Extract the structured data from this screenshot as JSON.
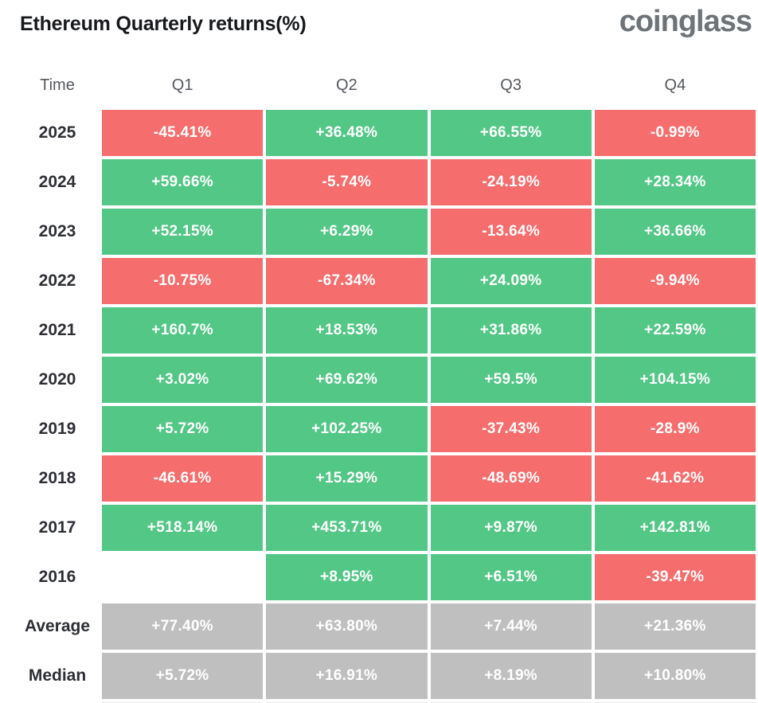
{
  "header": {
    "title": "Ethereum Quarterly returns(%)",
    "logo": "coinglass"
  },
  "colors": {
    "positive": "#52c786",
    "negative": "#f56d6d",
    "summary": "#bfbfbf",
    "cell_text": "#ffffff",
    "title_text": "#17191c",
    "logo_text": "#6e7378"
  },
  "table": {
    "columns": [
      "Time",
      "Q1",
      "Q2",
      "Q3",
      "Q4"
    ],
    "rows": [
      {
        "label": "2025",
        "cells": [
          {
            "text": "-45.41%",
            "type": "negative"
          },
          {
            "text": "+36.48%",
            "type": "positive"
          },
          {
            "text": "+66.55%",
            "type": "positive"
          },
          {
            "text": "-0.99%",
            "type": "negative"
          }
        ]
      },
      {
        "label": "2024",
        "cells": [
          {
            "text": "+59.66%",
            "type": "positive"
          },
          {
            "text": "-5.74%",
            "type": "negative"
          },
          {
            "text": "-24.19%",
            "type": "negative"
          },
          {
            "text": "+28.34%",
            "type": "positive"
          }
        ]
      },
      {
        "label": "2023",
        "cells": [
          {
            "text": "+52.15%",
            "type": "positive"
          },
          {
            "text": "+6.29%",
            "type": "positive"
          },
          {
            "text": "-13.64%",
            "type": "negative"
          },
          {
            "text": "+36.66%",
            "type": "positive"
          }
        ]
      },
      {
        "label": "2022",
        "cells": [
          {
            "text": "-10.75%",
            "type": "negative"
          },
          {
            "text": "-67.34%",
            "type": "negative"
          },
          {
            "text": "+24.09%",
            "type": "positive"
          },
          {
            "text": "-9.94%",
            "type": "negative"
          }
        ]
      },
      {
        "label": "2021",
        "cells": [
          {
            "text": "+160.7%",
            "type": "positive"
          },
          {
            "text": "+18.53%",
            "type": "positive"
          },
          {
            "text": "+31.86%",
            "type": "positive"
          },
          {
            "text": "+22.59%",
            "type": "positive"
          }
        ]
      },
      {
        "label": "2020",
        "cells": [
          {
            "text": "+3.02%",
            "type": "positive"
          },
          {
            "text": "+69.62%",
            "type": "positive"
          },
          {
            "text": "+59.5%",
            "type": "positive"
          },
          {
            "text": "+104.15%",
            "type": "positive"
          }
        ]
      },
      {
        "label": "2019",
        "cells": [
          {
            "text": "+5.72%",
            "type": "positive"
          },
          {
            "text": "+102.25%",
            "type": "positive"
          },
          {
            "text": "-37.43%",
            "type": "negative"
          },
          {
            "text": "-28.9%",
            "type": "negative"
          }
        ]
      },
      {
        "label": "2018",
        "cells": [
          {
            "text": "-46.61%",
            "type": "negative"
          },
          {
            "text": "+15.29%",
            "type": "positive"
          },
          {
            "text": "-48.69%",
            "type": "negative"
          },
          {
            "text": "-41.62%",
            "type": "negative"
          }
        ]
      },
      {
        "label": "2017",
        "cells": [
          {
            "text": "+518.14%",
            "type": "positive"
          },
          {
            "text": "+453.71%",
            "type": "positive"
          },
          {
            "text": "+9.87%",
            "type": "positive"
          },
          {
            "text": "+142.81%",
            "type": "positive"
          }
        ]
      },
      {
        "label": "2016",
        "cells": [
          {
            "text": "",
            "type": "empty"
          },
          {
            "text": "+8.95%",
            "type": "positive"
          },
          {
            "text": "+6.51%",
            "type": "positive"
          },
          {
            "text": "-39.47%",
            "type": "negative"
          }
        ]
      },
      {
        "label": "Average",
        "cells": [
          {
            "text": "+77.40%",
            "type": "summary"
          },
          {
            "text": "+63.80%",
            "type": "summary"
          },
          {
            "text": "+7.44%",
            "type": "summary"
          },
          {
            "text": "+21.36%",
            "type": "summary"
          }
        ]
      },
      {
        "label": "Median",
        "cells": [
          {
            "text": "+5.72%",
            "type": "summary"
          },
          {
            "text": "+16.91%",
            "type": "summary"
          },
          {
            "text": "+8.19%",
            "type": "summary"
          },
          {
            "text": "+10.80%",
            "type": "summary"
          }
        ]
      }
    ]
  },
  "chart_data": {
    "type": "heatmap",
    "title": "Ethereum Quarterly returns(%)",
    "unit": "%",
    "columns": [
      "Q1",
      "Q2",
      "Q3",
      "Q4"
    ],
    "row_labels": [
      "2025",
      "2024",
      "2023",
      "2022",
      "2021",
      "2020",
      "2019",
      "2018",
      "2017",
      "2016",
      "Average",
      "Median"
    ],
    "values": [
      [
        -45.41,
        36.48,
        66.55,
        -0.99
      ],
      [
        59.66,
        -5.74,
        -24.19,
        28.34
      ],
      [
        52.15,
        6.29,
        -13.64,
        36.66
      ],
      [
        -10.75,
        -67.34,
        24.09,
        -9.94
      ],
      [
        160.7,
        18.53,
        31.86,
        22.59
      ],
      [
        3.02,
        69.62,
        59.5,
        104.15
      ],
      [
        5.72,
        102.25,
        -37.43,
        -28.9
      ],
      [
        -46.61,
        15.29,
        -48.69,
        -41.62
      ],
      [
        518.14,
        453.71,
        9.87,
        142.81
      ],
      [
        null,
        8.95,
        6.51,
        -39.47
      ],
      [
        77.4,
        63.8,
        7.44,
        21.36
      ],
      [
        5.72,
        16.91,
        8.19,
        10.8
      ]
    ],
    "color_rule": "green = positive return, red = negative return, gray = Average/Median summary rows, blank = no data",
    "legend_position": "none",
    "grid": false
  }
}
